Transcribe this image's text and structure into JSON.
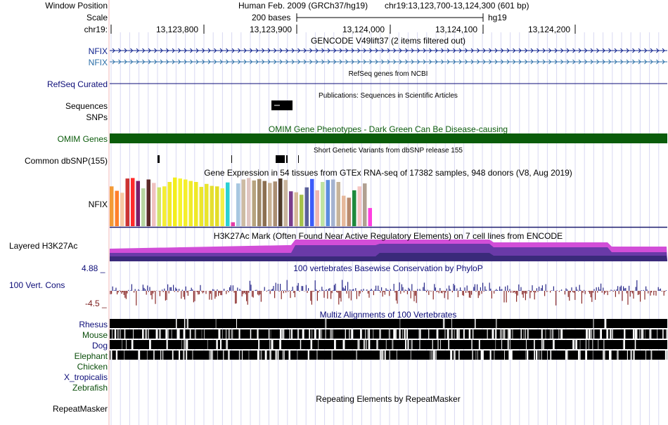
{
  "header": {
    "window_position_label": "Window Position",
    "scale_label": "Scale",
    "chrom_label": "chr19:",
    "assembly_title": "Human Feb. 2009 (GRCh37/hg19)",
    "position": "chr19:13,123,700-13,124,300 (601 bp)",
    "scale_text": "200 bases",
    "assembly_short": "hg19",
    "ruler_ticks": [
      "13,123,800",
      "13,123,900",
      "13,124,000",
      "13,124,100",
      "13,124,200"
    ]
  },
  "tracks": {
    "gencode": {
      "title": "GENCODE V49lift37 (2 items filtered out)",
      "items": [
        "NFIX",
        "NFIX"
      ]
    },
    "refseq": {
      "title": "RefSeq genes from NCBI",
      "label": "RefSeq Curated"
    },
    "publications": {
      "title": "Publications: Sequences in Scientific Articles",
      "labels": [
        "Sequences",
        "SNPs"
      ]
    },
    "omim": {
      "title": "OMIM Gene Phenotypes - Dark Green Can Be Disease-causing",
      "label": "OMIM Genes"
    },
    "dbsnp": {
      "title": "Short Genetic Variants from dbSNP release 155",
      "label": "Common dbSNP(155)"
    },
    "gtex": {
      "title": "Gene Expression in 54 tissues from GTEx RNA-seq of 17382 samples, 948 donors (V8, Aug 2019)",
      "label": "NFIX"
    },
    "h3k27ac": {
      "title": "H3K27Ac Mark (Often Found Near Active Regulatory Elements) on 7 cell lines from ENCODE",
      "label": "Layered H3K27Ac"
    },
    "conservation": {
      "title": "100 vertebrates Basewise Conservation by PhyloP",
      "label": "100 Vert. Cons",
      "max": "4.88 _",
      "min": "-4.5 _"
    },
    "multiz": {
      "title": "Multiz Alignments of 100 Vertebrates",
      "species": [
        "Rhesus",
        "Mouse",
        "Dog",
        "Elephant",
        "Chicken",
        "X_tropicalis",
        "Zebrafish"
      ]
    },
    "repeatmasker": {
      "title": "Repeating Elements by RepeatMasker",
      "label": "RepeatMasker"
    }
  },
  "colors": {
    "gtex_bars": [
      "#f39a36",
      "#ff7f2a",
      "#f7c9a4",
      "#cc3333",
      "#ff2a2a",
      "#7a1f6b",
      "#b7d5a0",
      "#5c2a2a",
      "#f0c2c0",
      "#cfe36b",
      "#f5ee32",
      "#f2ea28",
      "#f3ee1c",
      "#f7f32f",
      "#f5ef2b",
      "#f1eb2a",
      "#efe926",
      "#ece62c",
      "#e9e52b",
      "#e5df31",
      "#e4dd27",
      "#f5f048",
      "#2bd1d4",
      "#e63ba6",
      "#a8c7e0",
      "#cdbba3",
      "#e0c5c2",
      "#b7a37e",
      "#9e8767",
      "#8c6f51",
      "#c8b295",
      "#aa8e72",
      "#4f3b2a",
      "#c9b59d",
      "#7a3d8c",
      "#d6ba9a",
      "#a5c24a",
      "#5a5f9a",
      "#3c5cfa",
      "#f0b6b0",
      "#bfe3a2",
      "#5a8ce0",
      "#a4b3d0",
      "#c6b49a",
      "#e6b99c",
      "#b98a6e",
      "#1e8a3c",
      "#f5c6c2",
      "#b0a091",
      "#ff3fe0"
    ],
    "gtex_values": [
      0.81,
      0.72,
      0.68,
      0.97,
      0.98,
      0.92,
      0.77,
      0.95,
      0.88,
      0.79,
      0.81,
      0.9,
      0.99,
      0.97,
      0.95,
      0.92,
      0.9,
      0.8,
      0.86,
      0.82,
      0.81,
      0.77,
      0.89,
      0.08,
      0.87,
      0.95,
      0.98,
      0.93,
      0.96,
      0.92,
      0.88,
      0.91,
      0.97,
      0.94,
      0.71,
      0.69,
      0.64,
      0.79,
      0.96,
      0.73,
      0.9,
      0.94,
      0.95,
      0.9,
      0.62,
      0.58,
      0.73,
      0.81,
      0.87,
      0.37
    ]
  }
}
